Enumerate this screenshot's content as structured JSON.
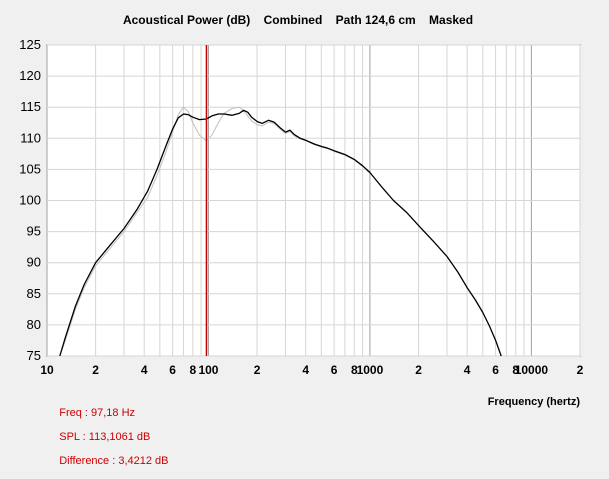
{
  "chart_data": {
    "type": "line",
    "title": "Acoustical Power (dB)    Combined    Path 124,6 cm    Masked",
    "xlabel": "Frequency (hertz)",
    "ylabel": "",
    "xscale": "log",
    "xlim": [
      10,
      20000
    ],
    "ylim": [
      75,
      125
    ],
    "y_ticks": [
      "125",
      "120",
      "115",
      "110",
      "105",
      "100",
      "95",
      "90",
      "85",
      "80",
      "75"
    ],
    "x_ticks": [
      {
        "value": 10,
        "label": "10"
      },
      {
        "value": 20,
        "label": "2"
      },
      {
        "value": 40,
        "label": "4"
      },
      {
        "value": 60,
        "label": "6"
      },
      {
        "value": 80,
        "label": "8"
      },
      {
        "value": 100,
        "label": "100"
      },
      {
        "value": 200,
        "label": "2"
      },
      {
        "value": 400,
        "label": "4"
      },
      {
        "value": 600,
        "label": "6"
      },
      {
        "value": 800,
        "label": "8"
      },
      {
        "value": 1000,
        "label": "1000"
      },
      {
        "value": 2000,
        "label": "2"
      },
      {
        "value": 4000,
        "label": "4"
      },
      {
        "value": 6000,
        "label": "6"
      },
      {
        "value": 8000,
        "label": "8"
      },
      {
        "value": 10000,
        "label": "10000"
      },
      {
        "value": 20000,
        "label": "2"
      }
    ],
    "grid": true,
    "cursor": {
      "x": 97.18
    },
    "series": [
      {
        "name": "",
        "color": "#000000",
        "points": [
          [
            12,
            75
          ],
          [
            13,
            78
          ],
          [
            15,
            83
          ],
          [
            17,
            86.5
          ],
          [
            20,
            90
          ],
          [
            24,
            92.5
          ],
          [
            30,
            95.5
          ],
          [
            36,
            98.5
          ],
          [
            42,
            101.5
          ],
          [
            48,
            105
          ],
          [
            54,
            108.5
          ],
          [
            60,
            111.5
          ],
          [
            65,
            113.3
          ],
          [
            70,
            113.9
          ],
          [
            75,
            113.8
          ],
          [
            80,
            113.4
          ],
          [
            88,
            113.0
          ],
          [
            97,
            113.1
          ],
          [
            105,
            113.6
          ],
          [
            115,
            113.9
          ],
          [
            125,
            113.9
          ],
          [
            140,
            113.7
          ],
          [
            155,
            114.0
          ],
          [
            165,
            114.5
          ],
          [
            175,
            114.2
          ],
          [
            185,
            113.4
          ],
          [
            200,
            112.7
          ],
          [
            215,
            112.4
          ],
          [
            235,
            112.9
          ],
          [
            255,
            112.6
          ],
          [
            280,
            111.6
          ],
          [
            300,
            111.0
          ],
          [
            320,
            111.3
          ],
          [
            340,
            110.6
          ],
          [
            370,
            110.0
          ],
          [
            400,
            109.7
          ],
          [
            450,
            109.1
          ],
          [
            500,
            108.7
          ],
          [
            550,
            108.4
          ],
          [
            600,
            108.0
          ],
          [
            700,
            107.4
          ],
          [
            800,
            106.6
          ],
          [
            900,
            105.6
          ],
          [
            1000,
            104.5
          ],
          [
            1200,
            102.0
          ],
          [
            1400,
            100.0
          ],
          [
            1700,
            98.0
          ],
          [
            2000,
            96.0
          ],
          [
            2500,
            93.3
          ],
          [
            3000,
            91.0
          ],
          [
            3500,
            88.5
          ],
          [
            4000,
            86.0
          ],
          [
            4500,
            84.0
          ],
          [
            5000,
            82.0
          ],
          [
            5500,
            79.8
          ],
          [
            6000,
            77.5
          ],
          [
            6500,
            75
          ]
        ]
      },
      {
        "name": "",
        "color": "#bfbfbf",
        "points": [
          [
            12,
            75
          ],
          [
            13,
            77.5
          ],
          [
            15,
            82.5
          ],
          [
            17,
            86
          ],
          [
            20,
            89.5
          ],
          [
            24,
            92
          ],
          [
            30,
            95
          ],
          [
            36,
            98
          ],
          [
            42,
            100.5
          ],
          [
            48,
            104
          ],
          [
            54,
            107.5
          ],
          [
            60,
            111
          ],
          [
            65,
            113.8
          ],
          [
            70,
            115.0
          ],
          [
            75,
            114.3
          ],
          [
            80,
            112.5
          ],
          [
            88,
            110.5
          ],
          [
            97,
            109.6
          ],
          [
            105,
            110.5
          ],
          [
            115,
            112.5
          ],
          [
            125,
            114.0
          ],
          [
            140,
            114.8
          ],
          [
            155,
            115.0
          ],
          [
            165,
            114.5
          ],
          [
            175,
            113.6
          ],
          [
            185,
            112.8
          ],
          [
            200,
            112.2
          ],
          [
            215,
            112.0
          ],
          [
            235,
            112.6
          ],
          [
            255,
            112.4
          ],
          [
            280,
            111.4
          ],
          [
            300,
            110.8
          ],
          [
            320,
            111.1
          ],
          [
            340,
            110.4
          ],
          [
            370,
            109.9
          ],
          [
            400,
            109.6
          ],
          [
            450,
            109.0
          ],
          [
            500,
            108.6
          ],
          [
            550,
            108.3
          ],
          [
            600,
            107.9
          ],
          [
            700,
            107.3
          ],
          [
            800,
            106.5
          ],
          [
            900,
            105.5
          ],
          [
            1000,
            104.4
          ]
        ]
      }
    ]
  },
  "status": {
    "freq": "Freq : 97,18 Hz",
    "spl": "SPL : 113,1061 dB",
    "difference": "Difference : 3,4212 dB",
    "color": "#cc0000"
  }
}
